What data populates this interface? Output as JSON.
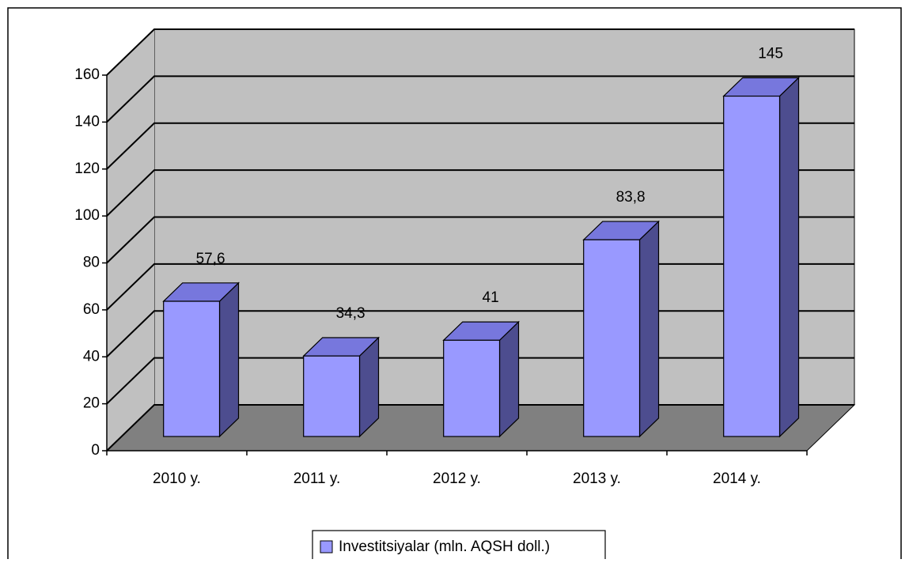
{
  "chart_data": {
    "type": "bar3d",
    "categories": [
      "2010 y.",
      "2011 y.",
      "2012 y.",
      "2013 y.",
      "2014 y."
    ],
    "series": [
      {
        "name": "Investitsiyalar (mln. AQSH doll.)",
        "color": "#9999ff",
        "values": [
          57.6,
          34.3,
          41,
          83.8,
          145
        ],
        "value_labels": [
          "57,6",
          "34,3",
          "41",
          "83,8",
          "145"
        ]
      }
    ],
    "ylim": [
      0,
      160
    ],
    "yticks": [
      0,
      20,
      40,
      60,
      80,
      100,
      120,
      140,
      160
    ],
    "grid": true,
    "legend": "bottom"
  }
}
